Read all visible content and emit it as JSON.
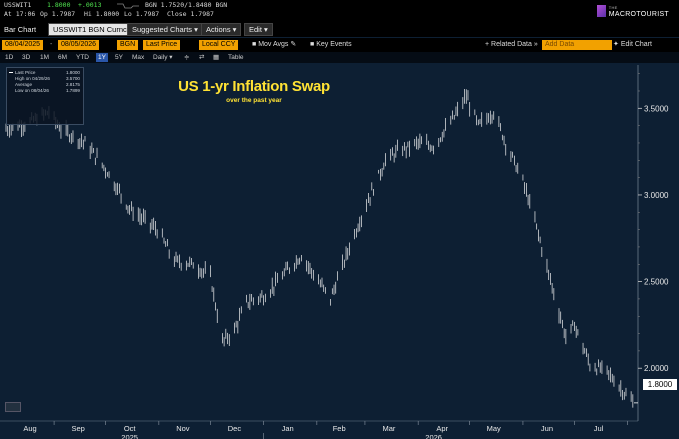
{
  "ticker": {
    "symbol": "USSWIT1",
    "last": "1.8000",
    "change": "+.0013",
    "bid_ask": "BGN 1.7520/1.8480 BGN",
    "at": "At 17:06",
    "op": "Op 1.7987",
    "hi": "Hi 1.8000",
    "lo": "Lo 1.7987",
    "close": "Close 1.7987"
  },
  "logo": {
    "top": "THE",
    "name": "MACROTOURIST"
  },
  "toolbar": {
    "bar_chart": "Bar Chart",
    "security": "USSWIT1 BGN Curnc",
    "suggested": "Suggested Charts ▾",
    "actions": "Actions ▾",
    "edit": "Edit ▾"
  },
  "controls": {
    "start_date": "08/04/2025",
    "end_date": "08/05/2026",
    "source": "BGN",
    "field": "Last Price",
    "ccy": "Local CCY",
    "mov_avgs": "Mov Avgs",
    "key_events": "Key Events",
    "related": "+ Related Data »",
    "add_data": "Add Data",
    "edit_chart": "Edit Chart"
  },
  "ranges": {
    "items": [
      "1D",
      "3D",
      "1M",
      "6M",
      "YTD",
      "1Y",
      "5Y",
      "Max"
    ],
    "selected": "1Y",
    "freq": "Daily ▾",
    "table": "Table"
  },
  "legend": {
    "last_label": "Last Price",
    "last_value": "1.8000",
    "high_label": "High on 04/29/26",
    "high_value": "3.5700",
    "avg_label": "Average",
    "avg_value": "2.8175",
    "low_label": "Low on 08/04/26",
    "low_value": "1.7899"
  },
  "chart_data": {
    "type": "line",
    "title": "US 1-yr Inflation Swap",
    "subtitle": "over the past year",
    "last_value_label": "1.8000",
    "y_ticks": [
      "3.5000",
      "3.0000",
      "2.5000",
      "2.0000"
    ],
    "ylim": [
      1.73,
      3.75
    ],
    "x_month_labels": [
      "Aug",
      "Sep",
      "Oct",
      "Nov",
      "Dec",
      "Jan",
      "Feb",
      "Mar",
      "Apr",
      "May",
      "Jun",
      "Jul"
    ],
    "x_year_labels": [
      "2025",
      "2026"
    ],
    "grid": false,
    "colors": {
      "background": "#0d1f33",
      "line": "#ffffff",
      "title": "#ffe234"
    },
    "series": [
      {
        "x": [
          "2025-08-04",
          "2025-08-18",
          "2025-08-29",
          "2025-09-05",
          "2025-09-19",
          "2025-10-01",
          "2025-10-15",
          "2025-10-31",
          "2025-11-10",
          "2025-11-21",
          "2025-12-01",
          "2025-12-08",
          "2025-12-15",
          "2025-12-22",
          "2026-01-02",
          "2026-01-16",
          "2026-01-23",
          "2026-02-02",
          "2026-02-09",
          "2026-02-20",
          "2026-03-02",
          "2026-03-13",
          "2026-03-20",
          "2026-04-01",
          "2026-04-10",
          "2026-04-22",
          "2026-04-29",
          "2026-05-06",
          "2026-05-15",
          "2026-05-22",
          "2026-06-01",
          "2026-06-08",
          "2026-06-15",
          "2026-06-26",
          "2026-07-01",
          "2026-07-10",
          "2026-07-20",
          "2026-08-04"
        ],
        "values": [
          3.38,
          3.42,
          3.48,
          3.38,
          3.3,
          3.15,
          2.92,
          2.8,
          2.62,
          2.6,
          2.53,
          2.15,
          2.22,
          2.38,
          2.42,
          2.58,
          2.65,
          2.5,
          2.4,
          2.7,
          2.95,
          3.2,
          3.25,
          3.3,
          3.28,
          3.45,
          3.57,
          3.4,
          3.48,
          3.3,
          3.08,
          2.85,
          2.58,
          2.18,
          2.25,
          2.02,
          1.98,
          1.8
        ]
      }
    ]
  }
}
